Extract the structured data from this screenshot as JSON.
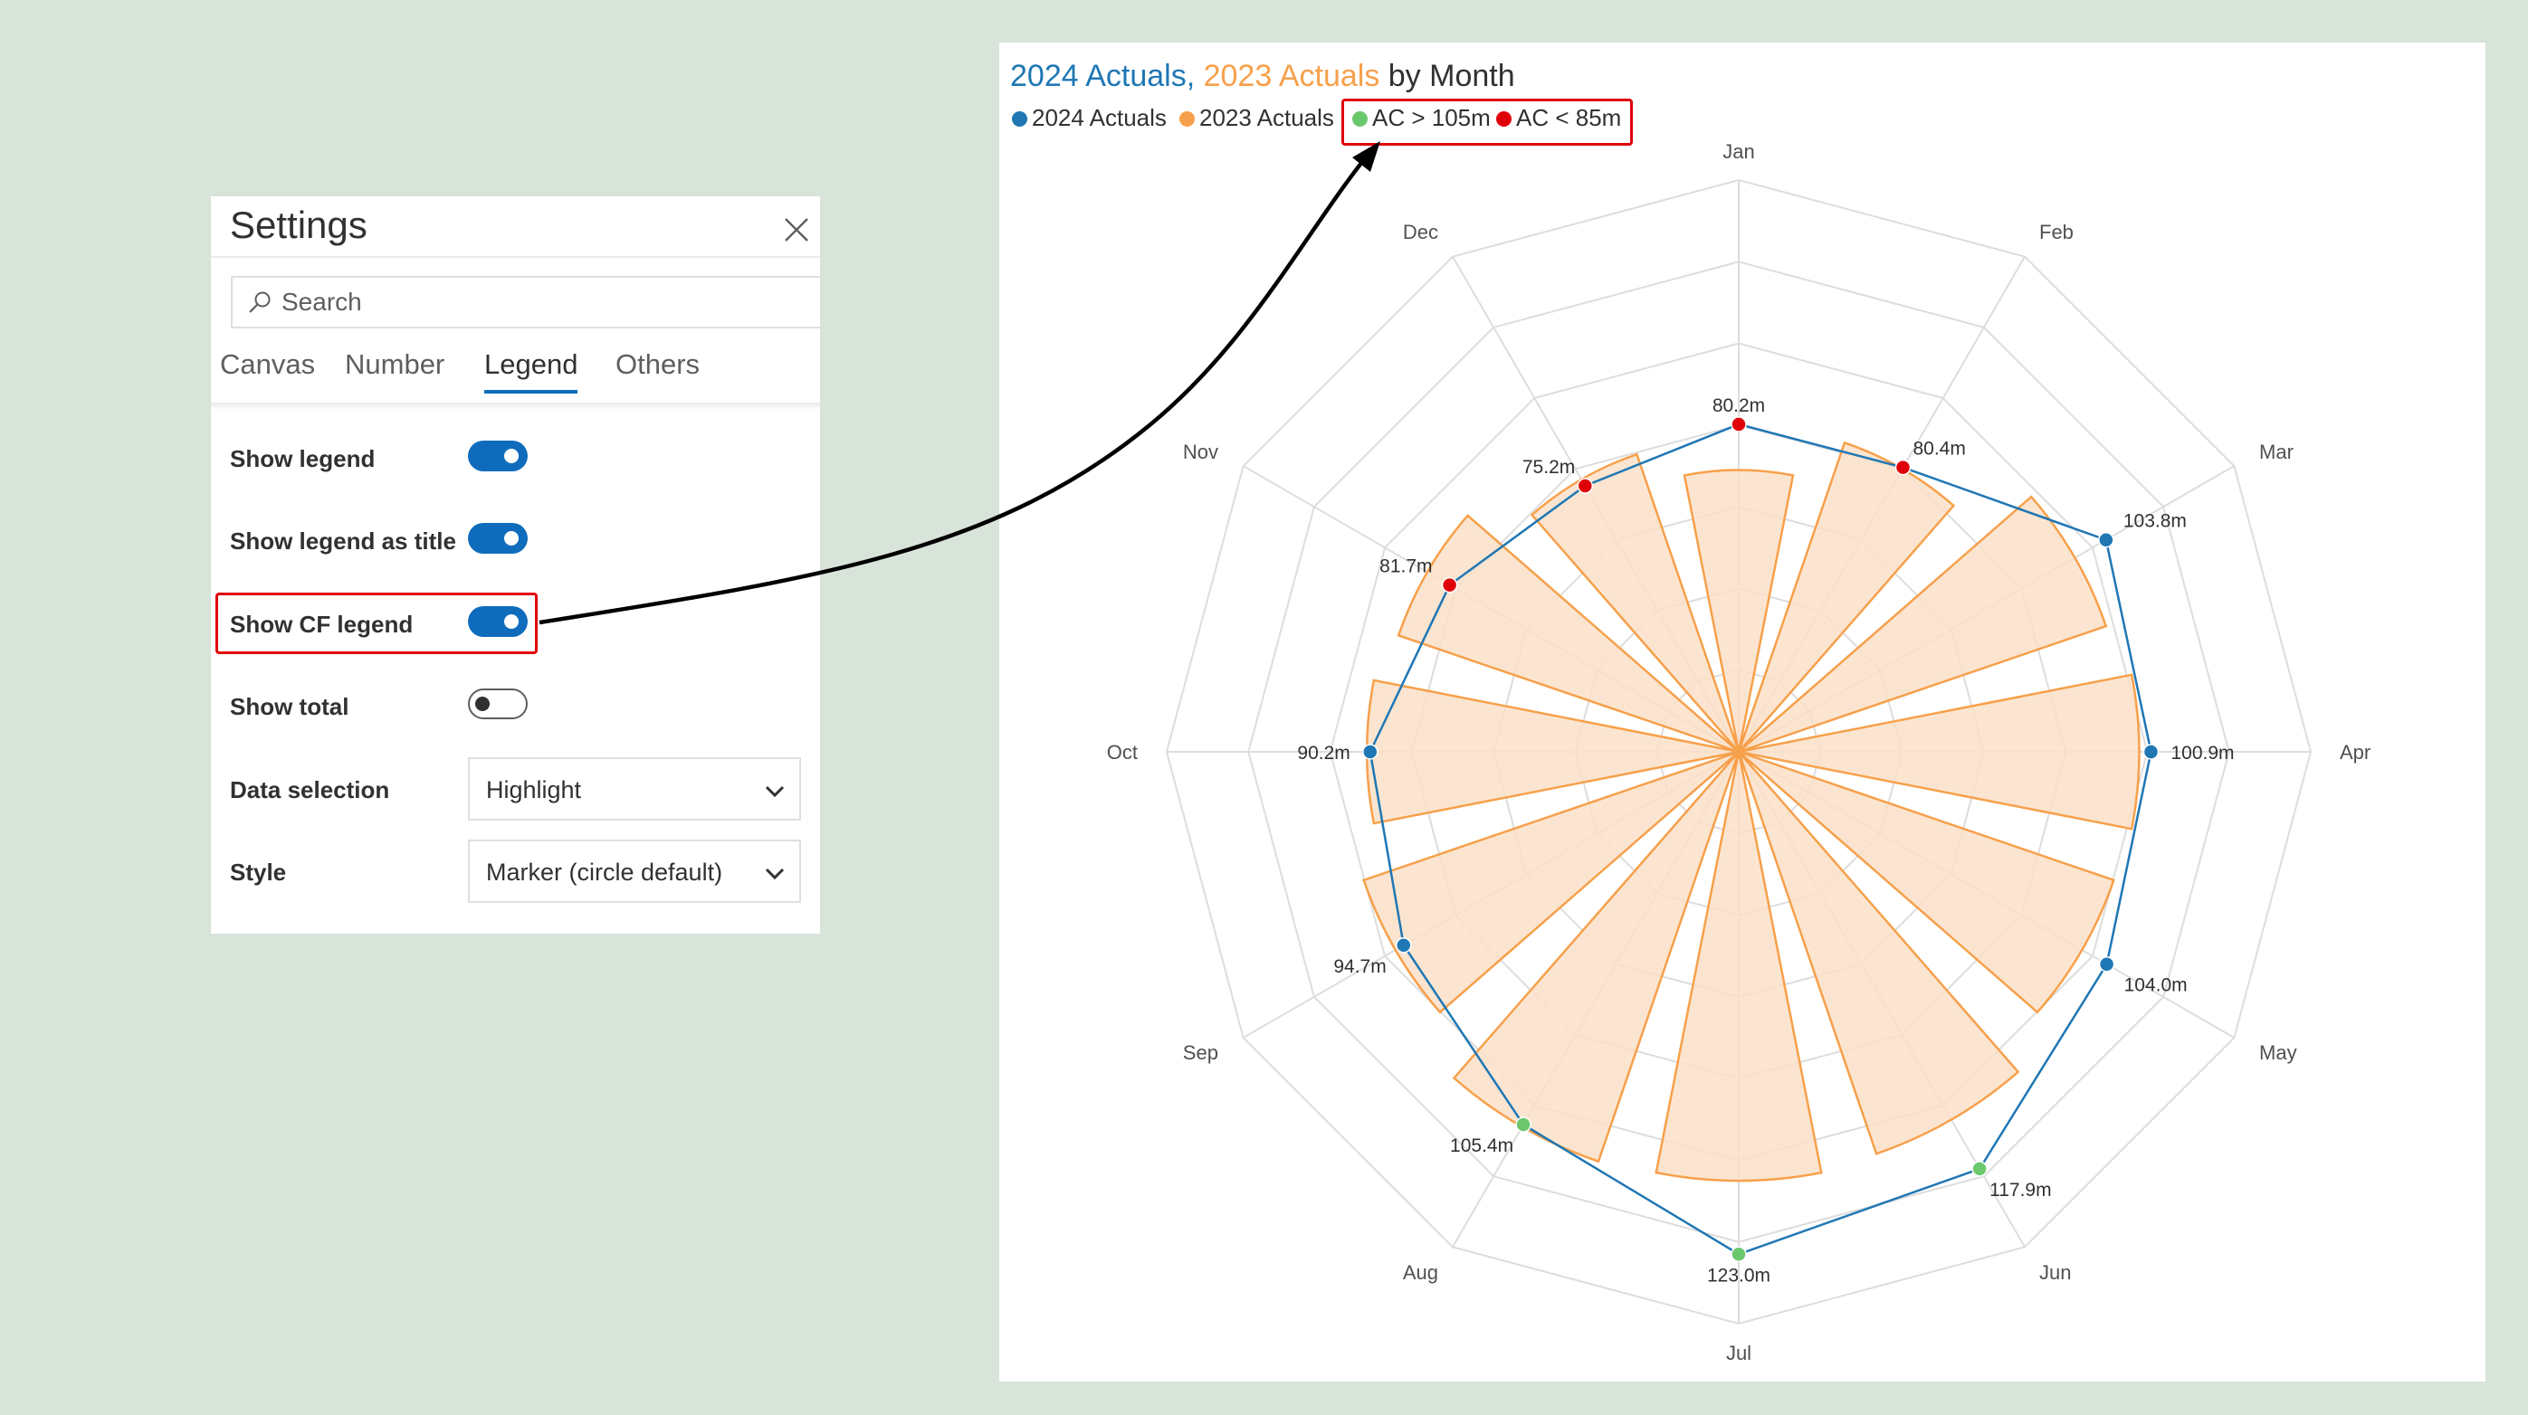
{
  "settings": {
    "title": "Settings",
    "search_placeholder": "Search",
    "tabs": [
      "Canvas",
      "Number",
      "Legend",
      "Others"
    ],
    "active_tab": "Legend",
    "rows": {
      "show_legend": {
        "label": "Show legend",
        "on": true
      },
      "show_legend_as_title": {
        "label": "Show legend as title",
        "on": true
      },
      "show_cf_legend": {
        "label": "Show CF legend",
        "on": true
      },
      "show_total": {
        "label": "Show total",
        "on": false
      },
      "data_selection": {
        "label": "Data selection",
        "value": "Highlight"
      },
      "style": {
        "label": "Style",
        "value": "Marker (circle default)"
      }
    }
  },
  "chart_data": {
    "type": "radar",
    "title": {
      "series1": "2024 Actuals,",
      "series2": "2023 Actuals",
      "rest": "by Month"
    },
    "categories": [
      "Jan",
      "Feb",
      "Mar",
      "Apr",
      "May",
      "Jun",
      "Jul",
      "Aug",
      "Sep",
      "Oct",
      "Nov",
      "Dec"
    ],
    "series": [
      {
        "name": "2024 Actuals",
        "render": "line-with-markers",
        "values": [
          80.2,
          80.4,
          103.8,
          100.9,
          104.0,
          117.9,
          123.0,
          105.4,
          94.7,
          90.2,
          81.7,
          75.2
        ],
        "labels": [
          "80.2m",
          "80.4m",
          "103.8m",
          "100.9m",
          "104.0m",
          "117.9m",
          "123.0m",
          "105.4m",
          "94.7m",
          "90.2m",
          "81.7m",
          "75.2m"
        ]
      },
      {
        "name": "2023 Actuals",
        "render": "polar-bars",
        "values": [
          69,
          80,
          95,
          98,
          97,
          104,
          105,
          106,
          97,
          91,
          88,
          77
        ]
      }
    ],
    "rmax": 140,
    "grid_rings": 7,
    "grid": true,
    "legend_position": "top-left",
    "legend": [
      {
        "label": "2024 Actuals",
        "color": "#1f77b4"
      },
      {
        "label": "2023 Actuals",
        "color": "#f7a04b"
      },
      {
        "label": "AC > 105m",
        "color": "#6cc86c"
      },
      {
        "label": "AC < 85m",
        "color": "#e0000a"
      }
    ],
    "conditional_formatting": [
      {
        "rule": "AC > 105m",
        "color": "#6cc86c",
        "threshold": 105,
        "op": ">"
      },
      {
        "rule": "AC < 85m",
        "color": "#e0000a",
        "threshold": 85,
        "op": "<"
      }
    ]
  },
  "colors": {
    "line": "#1f77b4",
    "bar_fill": "#fce0c8",
    "bar_stroke": "#f7a04b",
    "grid": "#dddddd",
    "highlight": "#e0000a",
    "toggle_on": "#0f6cbd"
  },
  "icons": {
    "close": "close-icon",
    "search": "search-icon",
    "chevron": "chevron-down-icon",
    "arrow": "connector-arrow"
  }
}
